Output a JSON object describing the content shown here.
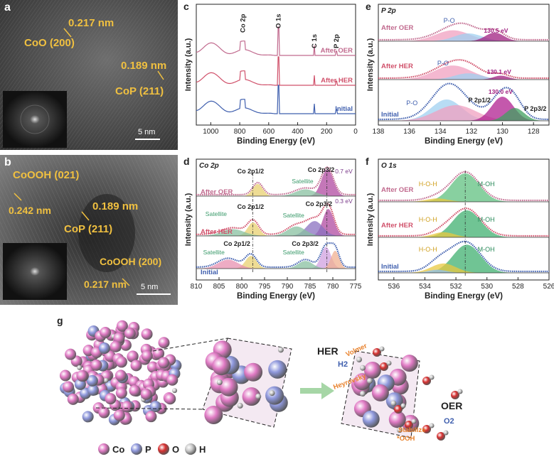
{
  "panel_labels": {
    "a": "a",
    "b": "b",
    "c": "c",
    "d": "d",
    "e": "e",
    "f": "f",
    "g": "g"
  },
  "tem_a": {
    "annotations": [
      "0.217 nm",
      "CoO (200)",
      "0.189 nm",
      "CoP (211)"
    ],
    "scale_bar": "5 nm"
  },
  "tem_b": {
    "annotations": [
      "CoOOH (021)",
      "0.242 nm",
      "0.189 nm",
      "CoP (211)",
      "CoOOH (200)",
      "0.217 nm"
    ],
    "scale_bar": "5 nm"
  },
  "shared_axes": {
    "ylabel": "Intensity (a.u.)",
    "xlabel": "Binding Energy (eV)"
  },
  "chart_data": [
    {
      "id": "c",
      "type": "line",
      "title": "",
      "xlim": [
        1100,
        0
      ],
      "xticks": [
        1000,
        800,
        600,
        400,
        200,
        0
      ],
      "series": [
        {
          "name": "After OER",
          "color": "#c16a8e"
        },
        {
          "name": "After HER",
          "color": "#d0506a"
        },
        {
          "name": "Initial",
          "color": "#3f5fae"
        }
      ],
      "peak_labels": [
        "Co 2p",
        "O 1s",
        "C 1s",
        "P 2p"
      ],
      "curve_labels": [
        "After OER",
        "After HER",
        "Initial"
      ]
    },
    {
      "id": "d",
      "type": "line",
      "title": "Co 2p",
      "xlim": [
        810,
        775
      ],
      "xticks": [
        810,
        805,
        800,
        795,
        790,
        785,
        780,
        775
      ],
      "series": [
        {
          "name": "After OER",
          "color": "#c16a8e"
        },
        {
          "name": "After HER",
          "color": "#d0506a"
        },
        {
          "name": "Initial",
          "color": "#3f5fae"
        }
      ],
      "peak_labels": {
        "oer": [
          "Co 2p1/2",
          "Co 2p3/2",
          "Satellite",
          "0.7 eV"
        ],
        "her": [
          "Co 2p1/2",
          "Co 2p3/2",
          "Satellite",
          "Satellite",
          "0.3 eV"
        ],
        "ini": [
          "Co 2p1/2",
          "Co 2p3/2",
          "Satellite",
          "Satellite"
        ]
      },
      "curve_labels": [
        "After OER",
        "After HER",
        "Initial"
      ]
    },
    {
      "id": "e",
      "type": "line",
      "title": "P 2p",
      "xlim": [
        138,
        127
      ],
      "xticks": [
        138,
        136,
        134,
        132,
        130,
        128
      ],
      "series": [
        {
          "name": "After OER",
          "color": "#c16a8e"
        },
        {
          "name": "After HER",
          "color": "#d0506a"
        },
        {
          "name": "Initial",
          "color": "#3f5fae"
        }
      ],
      "peak_labels": {
        "oer": [
          "P-O",
          "130.5 eV"
        ],
        "her": [
          "P-O",
          "130.1 eV"
        ],
        "ini": [
          "P-O",
          "P 2p1/2",
          "130.0 eV",
          "P 2p3/2"
        ]
      },
      "curve_labels": [
        "After OER",
        "After HER",
        "Initial"
      ]
    },
    {
      "id": "f",
      "type": "line",
      "title": "O 1s",
      "xlim": [
        537,
        526
      ],
      "xticks": [
        536,
        534,
        532,
        530,
        528,
        526
      ],
      "series": [
        {
          "name": "After OER",
          "color": "#c16a8e"
        },
        {
          "name": "After HER",
          "color": "#d0506a"
        },
        {
          "name": "Initial",
          "color": "#3f5fae"
        }
      ],
      "peak_labels": {
        "oer": [
          "H-O-H",
          "M-OH"
        ],
        "her": [
          "H-O-H",
          "M-OH"
        ],
        "ini": [
          "H-O-H",
          "M-OH"
        ]
      },
      "curve_labels": [
        "After OER",
        "After HER",
        "Initial"
      ]
    }
  ],
  "schematic": {
    "her_label": "HER",
    "oer_label": "OER",
    "h2": "H2",
    "o2": "O2",
    "heyrovsky": "Heyrovsky",
    "volmer": "Volmer",
    "stabilize": "Stabilize",
    "ooh": "*OOH",
    "legend": [
      {
        "label": "Co",
        "color": "#e07ac4"
      },
      {
        "label": "P",
        "color": "#8f98dc"
      },
      {
        "label": "O",
        "color": "#d63030"
      },
      {
        "label": "H",
        "color": "#c8c8c8"
      }
    ]
  }
}
